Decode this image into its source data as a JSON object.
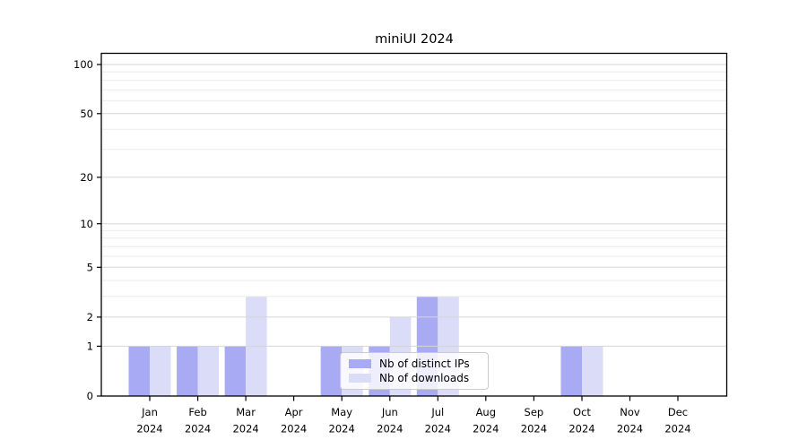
{
  "chart_data": {
    "type": "bar",
    "title": "miniUI 2024",
    "categories": [
      "Jan",
      "Feb",
      "Mar",
      "Apr",
      "May",
      "Jun",
      "Jul",
      "Aug",
      "Sep",
      "Oct",
      "Nov",
      "Dec"
    ],
    "year_label": "2024",
    "series": [
      {
        "name": "Nb of distinct IPs",
        "color": "#a8aaf4",
        "values": [
          1,
          1,
          1,
          0,
          1,
          1,
          3,
          0,
          0,
          1,
          0,
          0
        ]
      },
      {
        "name": "Nb of downloads",
        "color": "#dbdcf8",
        "values": [
          1,
          1,
          3,
          0,
          1,
          2,
          3,
          0,
          0,
          1,
          0,
          0
        ]
      }
    ],
    "xlabel": "",
    "ylabel": "",
    "yscale": "log1p",
    "ylim": [
      0,
      117
    ],
    "y_major_ticks": [
      0,
      1,
      2,
      5,
      10,
      20,
      50,
      100
    ],
    "y_minor_ticks": [
      3,
      4,
      6,
      7,
      8,
      9,
      30,
      40,
      60,
      70,
      80,
      90
    ],
    "grid": true,
    "legend_position": "lower center inside plot"
  },
  "colors": {
    "background": "#ffffff",
    "spine": "#000000",
    "major_grid": "#d6d6d6",
    "minor_grid": "#ebebeb",
    "tick_text": "#000000",
    "legend_border": "#cbcbcb"
  }
}
